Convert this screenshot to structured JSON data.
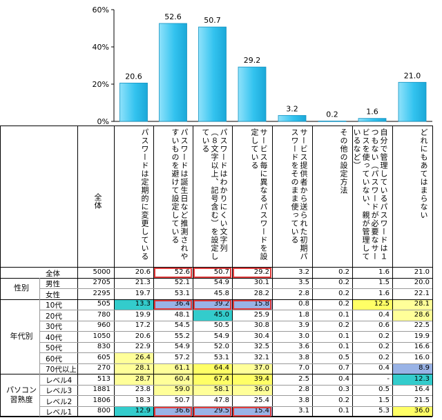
{
  "chart_data": {
    "type": "bar",
    "y_ticks": [
      "0%",
      "20%",
      "40%",
      "60%"
    ],
    "ylim": [
      0,
      60
    ],
    "categories": [
      "パスワードは定期的に変更している",
      "パスワードは誕生日など推測されやすいものを避けて設定している",
      "パスワードはわかりにくい文字列（８文字以上、記号含む）を設定している",
      "サービス毎に異なるパスワードを設定している",
      "サービス提供者から送られた初期パスワードをそのまま使っている",
      "その他の設定方法",
      "自分で管理しているパスワードは１つもない（パスワードが必要なサービスを使っていない、親が管理しているなど）",
      "どれにもあてはまらない"
    ],
    "values": [
      20.6,
      52.6,
      50.7,
      29.2,
      3.2,
      0.2,
      1.6,
      21.0
    ],
    "value_labels": [
      "20.6",
      "52.6",
      "50.7",
      "29.2",
      "3.2",
      "0.2",
      "1.6",
      "21.0"
    ],
    "bar_color": "#33c3ef"
  },
  "table": {
    "total_header": "全体",
    "column_headers": [
      "パスワードは定期的に変更している",
      "パスワードは誕生日など推測されやすいものを避けて設定している",
      "パスワードはわかりにくい文字列（８文字以上、記号含む）を設定している",
      "サービス毎に異なるパスワードを設定している",
      "サービス提供者から送られた初期パスワードをそのまま使っている",
      "その他の設定方法",
      "自分で管理しているパスワードは１つもない（パスワードが必要なサービスを使っていない、親が管理しているなど）",
      "どれにもあてはまらない"
    ],
    "groups": [
      {
        "label": "",
        "rows": [
          {
            "label": "全体",
            "n": "5000",
            "values": [
              "20.6",
              "52.6",
              "50.7",
              "29.2",
              "3.2",
              "0.2",
              "1.6",
              "21.0"
            ]
          }
        ]
      },
      {
        "label": "性別",
        "rows": [
          {
            "label": "男性",
            "n": "2705",
            "values": [
              "21.3",
              "52.1",
              "54.9",
              "30.1",
              "3.5",
              "0.2",
              "1.5",
              "20.0"
            ]
          },
          {
            "label": "女性",
            "n": "2295",
            "values": [
              "19.7",
              "53.1",
              "45.8",
              "28.2",
              "2.8",
              "0.2",
              "1.6",
              "22.1"
            ]
          }
        ]
      },
      {
        "label": "年代別",
        "rows": [
          {
            "label": "10代",
            "n": "505",
            "values": [
              "13.3",
              "36.4",
              "39.2",
              "15.8",
              "0.8",
              "0.2",
              "12.5",
              "28.1"
            ]
          },
          {
            "label": "20代",
            "n": "780",
            "values": [
              "19.9",
              "48.1",
              "45.0",
              "25.9",
              "1.8",
              "0.1",
              "0.4",
              "28.6"
            ]
          },
          {
            "label": "30代",
            "n": "960",
            "values": [
              "17.2",
              "54.5",
              "50.5",
              "30.8",
              "3.9",
              "0.2",
              "0.6",
              "22.5"
            ]
          },
          {
            "label": "40代",
            "n": "1050",
            "values": [
              "20.6",
              "55.2",
              "54.9",
              "30.4",
              "3.0",
              "0.1",
              "0.2",
              "19.9"
            ]
          },
          {
            "label": "50代",
            "n": "830",
            "values": [
              "22.9",
              "54.9",
              "52.0",
              "32.5",
              "3.6",
              "0.1",
              "0.2",
              "16.6"
            ]
          },
          {
            "label": "60代",
            "n": "605",
            "values": [
              "26.4",
              "57.2",
              "53.1",
              "32.1",
              "3.8",
              "0.5",
              "0.2",
              "16.0"
            ]
          },
          {
            "label": "70代以上",
            "n": "270",
            "values": [
              "28.1",
              "61.1",
              "64.4",
              "37.0",
              "7.0",
              "0.7",
              "0.4",
              "8.9"
            ]
          }
        ]
      },
      {
        "label": "パソコン\n習熟度",
        "rows": [
          {
            "label": "レベル4",
            "n": "513",
            "values": [
              "28.7",
              "60.4",
              "67.4",
              "39.4",
              "2.5",
              "0.4",
              "-",
              "12.3"
            ]
          },
          {
            "label": "レベル3",
            "n": "1881",
            "values": [
              "23.8",
              "59.0",
              "58.1",
              "36.0",
              "2.8",
              "0.3",
              "0.5",
              "16.4"
            ]
          },
          {
            "label": "レベル2",
            "n": "1806",
            "values": [
              "18.3",
              "50.7",
              "47.8",
              "25.4",
              "3.8",
              "0.2",
              "1.5",
              "21.5"
            ]
          },
          {
            "label": "レベル1",
            "n": "800",
            "values": [
              "12.9",
              "36.6",
              "29.5",
              "15.4",
              "3.1",
              "0.1",
              "5.3",
              "36.0"
            ]
          }
        ]
      }
    ],
    "colors": {
      "yellow": "#ffff66",
      "light_yellow": "#ffff99",
      "cyan": "#33cccc",
      "blue": "#99b3e6",
      "red_box": "#e03c3c"
    }
  }
}
